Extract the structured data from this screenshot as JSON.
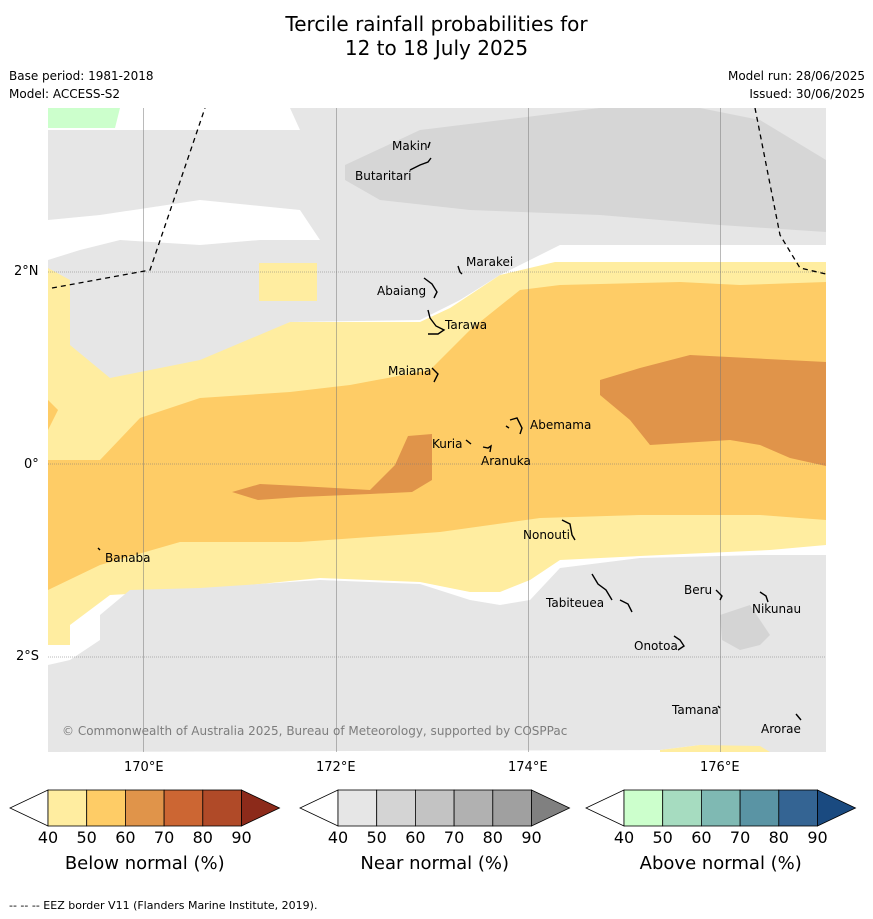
{
  "title": {
    "line1": "Tercile rainfall probabilities for",
    "line2": "12 to 18 July 2025"
  },
  "meta": {
    "base_period": "Base period: 1981-2018",
    "model": "Model: ACCESS-S2",
    "model_run": "Model run: 28/06/2025",
    "issued": "Issued: 30/06/2025"
  },
  "axes": {
    "lon_ticks": [
      "170°E",
      "172°E",
      "174°E",
      "176°E"
    ],
    "lat_ticks": [
      "2°N",
      "0°",
      "2°S"
    ]
  },
  "places": [
    "Makin",
    "Butaritari",
    "Marakei",
    "Abaiang",
    "Tarawa",
    "Maiana",
    "Abemama",
    "Kuria",
    "Aranuka",
    "Nonouti",
    "Banaba",
    "Tabiteuea",
    "Beru",
    "Nikunau",
    "Onotoa",
    "Tamana",
    "Arorae"
  ],
  "copyright": "© Commonwealth of Australia 2025, Bureau of Meteorology, supported by COSPPac",
  "colorbars": [
    {
      "label": "Below normal (%)",
      "ticks": [
        "40",
        "50",
        "60",
        "70",
        "80",
        "90"
      ],
      "colors": [
        "#ffeda0",
        "#fecc66",
        "#e0944a",
        "#cc6633",
        "#b04a28",
        "#8c2a1a"
      ]
    },
    {
      "label": "Near normal (%)",
      "ticks": [
        "40",
        "50",
        "60",
        "70",
        "80",
        "90"
      ],
      "colors": [
        "#e6e6e6",
        "#d4d4d4",
        "#c3c3c3",
        "#b1b1b1",
        "#a0a0a0",
        "#808080"
      ]
    },
    {
      "label": "Above normal (%)",
      "ticks": [
        "40",
        "50",
        "60",
        "70",
        "80",
        "90"
      ],
      "colors": [
        "#ccffcc",
        "#a6dcc0",
        "#7fb9b3",
        "#5a94a4",
        "#346493",
        "#1a4a80"
      ]
    }
  ],
  "footer": "--  --  -- EEZ border V11 (Flanders Marine Institute, 2019)."
}
